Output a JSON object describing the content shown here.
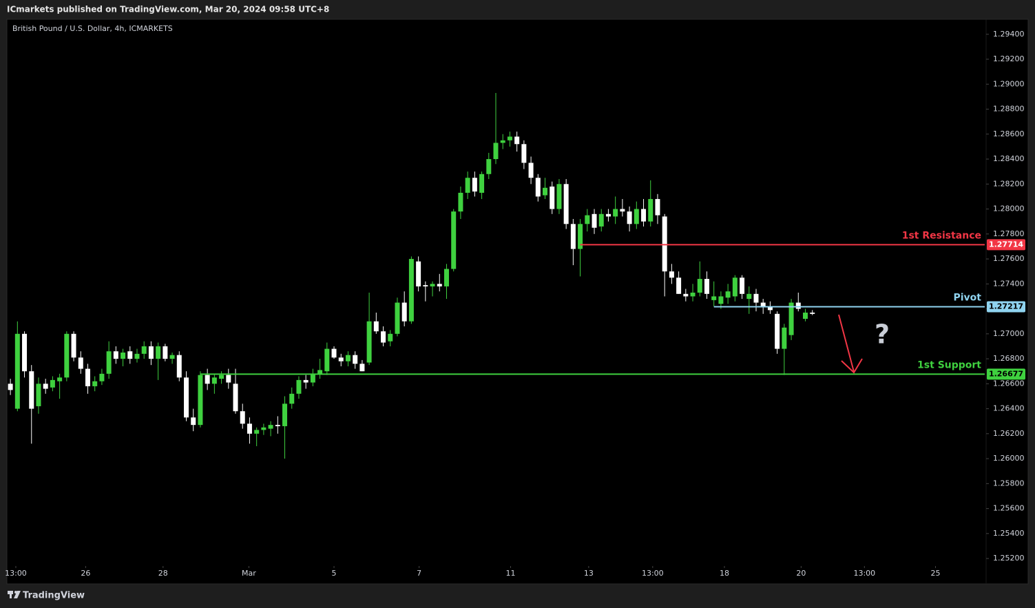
{
  "header": "ICmarkets published on TradingView.com, Mar 20, 2024 09:58 UTC+8",
  "footer": "TradingView",
  "chart_data": {
    "type": "candlestick",
    "title": "British Pound / U.S. Dollar, 4h, ICMARKETS",
    "up_color": "#3fd13f",
    "down_color": "#ffffff",
    "grid": false,
    "xlim": [
      -0.5,
      138.5
    ],
    "ylim": [
      1.2514,
      1.2952
    ],
    "xticks": [
      {
        "value": 0.77,
        "label": "13:00"
      },
      {
        "value": 10.7,
        "label": "26"
      },
      {
        "value": 21.7,
        "label": "28"
      },
      {
        "value": 33.9,
        "label": "Mar"
      },
      {
        "value": 46.0,
        "label": "5"
      },
      {
        "value": 58.1,
        "label": "7"
      },
      {
        "value": 71.1,
        "label": "11"
      },
      {
        "value": 82.2,
        "label": "13"
      },
      {
        "value": 91.3,
        "label": "13:00"
      },
      {
        "value": 101.5,
        "label": "18"
      },
      {
        "value": 112.4,
        "label": "20"
      },
      {
        "value": 121.4,
        "label": "13:00"
      },
      {
        "value": 131.5,
        "label": "25"
      }
    ],
    "yticks": [
      {
        "value": 1.252,
        "label": "1.25200"
      },
      {
        "value": 1.254,
        "label": "1.25400"
      },
      {
        "value": 1.256,
        "label": "1.25600"
      },
      {
        "value": 1.258,
        "label": "1.25800"
      },
      {
        "value": 1.26,
        "label": "1.26000"
      },
      {
        "value": 1.262,
        "label": "1.26200"
      },
      {
        "value": 1.264,
        "label": "1.26400"
      },
      {
        "value": 1.266,
        "label": "1.26600"
      },
      {
        "value": 1.268,
        "label": "1.26800"
      },
      {
        "value": 1.27,
        "label": "1.27000"
      },
      {
        "value": 1.272,
        "label": "1.27200"
      },
      {
        "value": 1.274,
        "label": "1.27400"
      },
      {
        "value": 1.276,
        "label": "1.27600"
      },
      {
        "value": 1.278,
        "label": "1.27800"
      },
      {
        "value": 1.28,
        "label": "1.28000"
      },
      {
        "value": 1.282,
        "label": "1.28200"
      },
      {
        "value": 1.284,
        "label": "1.28400"
      },
      {
        "value": 1.286,
        "label": "1.28600"
      },
      {
        "value": 1.288,
        "label": "1.28800"
      },
      {
        "value": 1.29,
        "label": "1.29000"
      },
      {
        "value": 1.292,
        "label": "1.29200"
      },
      {
        "value": 1.294,
        "label": "1.29400"
      }
    ],
    "open": [
      1.266,
      1.264,
      1.27,
      1.267,
      1.2642,
      1.266,
      1.2657,
      1.2662,
      1.2665,
      1.27,
      1.2681,
      1.2672,
      1.2658,
      1.2662,
      1.2668,
      1.2686,
      1.268,
      1.2686,
      1.268,
      1.2684,
      1.269,
      1.268,
      1.269,
      1.268,
      1.2683,
      1.2665,
      1.2633,
      1.2627,
      1.2667,
      1.266,
      1.2664,
      1.2667,
      1.266,
      1.2638,
      1.2628,
      1.262,
      1.2623,
      1.2624,
      1.2627,
      1.2626,
      1.2644,
      1.2652,
      1.2663,
      1.2661,
      1.2668,
      1.267,
      1.2688,
      1.2681,
      1.2678,
      1.2683,
      1.2676,
      1.2677,
      1.271,
      1.2702,
      1.2694,
      1.27,
      1.2725,
      1.271,
      1.2758,
      1.2739,
      1.2738,
      1.274,
      1.2738,
      1.2752,
      1.2798,
      1.2813,
      1.2825,
      1.2813,
      1.2828,
      1.284,
      1.2853,
      1.2855,
      1.2858,
      1.2852,
      1.2837,
      1.2825,
      1.2811,
      1.2818,
      1.28,
      1.282,
      1.2788,
      1.2768,
      1.2788,
      1.2796,
      1.2786,
      1.2796,
      1.2794,
      1.28,
      1.2798,
      1.2788,
      1.28,
      1.279,
      1.2808,
      1.2794,
      1.275,
      1.2745,
      1.2732,
      1.273,
      1.2733,
      1.2744,
      1.2727,
      1.2724,
      1.2729,
      1.273,
      1.2745,
      1.2728,
      1.2732,
      1.2725,
      1.2722,
      1.2716,
      1.2688,
      1.2699,
      1.2725,
      1.2712,
      1.2717
    ],
    "high": [
      1.2664,
      1.271,
      1.2702,
      1.2675,
      1.2665,
      1.2664,
      1.2666,
      1.2668,
      1.2702,
      1.2702,
      1.2686,
      1.2676,
      1.2666,
      1.2672,
      1.2694,
      1.269,
      1.2688,
      1.269,
      1.2688,
      1.2694,
      1.2694,
      1.2693,
      1.2692,
      1.2685,
      1.2686,
      1.267,
      1.264,
      1.267,
      1.2672,
      1.2668,
      1.267,
      1.2672,
      1.2672,
      1.2644,
      1.2633,
      1.2625,
      1.2628,
      1.263,
      1.2634,
      1.265,
      1.2657,
      1.2666,
      1.2667,
      1.2672,
      1.268,
      1.2693,
      1.269,
      1.2684,
      1.2686,
      1.2686,
      1.2679,
      1.2733,
      1.2717,
      1.2706,
      1.2703,
      1.2729,
      1.2734,
      1.2762,
      1.2762,
      1.2742,
      1.2742,
      1.2748,
      1.2756,
      1.28,
      1.2818,
      1.283,
      1.283,
      1.283,
      1.2845,
      1.2893,
      1.286,
      1.2862,
      1.2862,
      1.2855,
      1.2842,
      1.2828,
      1.2825,
      1.2822,
      1.2824,
      1.2824,
      1.2792,
      1.2792,
      1.28,
      1.28,
      1.28,
      1.28,
      1.281,
      1.2808,
      1.2802,
      1.2806,
      1.2808,
      1.2823,
      1.2812,
      1.2796,
      1.2756,
      1.275,
      1.2736,
      1.274,
      1.2758,
      1.275,
      1.2742,
      1.2734,
      1.274,
      1.2747,
      1.2747,
      1.2738,
      1.2736,
      1.2728,
      1.2726,
      1.2718,
      1.2708,
      1.2728,
      1.2733,
      1.272,
      1.2719
    ],
    "low": [
      1.2651,
      1.2638,
      1.2665,
      1.2612,
      1.2636,
      1.2652,
      1.2654,
      1.2648,
      1.2662,
      1.2678,
      1.2668,
      1.2652,
      1.2654,
      1.2659,
      1.2664,
      1.2676,
      1.2674,
      1.2676,
      1.2677,
      1.268,
      1.2675,
      1.2663,
      1.2678,
      1.2676,
      1.2662,
      1.263,
      1.2622,
      1.2625,
      1.2655,
      1.2652,
      1.266,
      1.2656,
      1.2636,
      1.2624,
      1.2612,
      1.261,
      1.2619,
      1.2618,
      1.262,
      1.26,
      1.264,
      1.2648,
      1.2656,
      1.2658,
      1.2664,
      1.2667,
      1.268,
      1.2674,
      1.2674,
      1.2672,
      1.267,
      1.2675,
      1.27,
      1.269,
      1.269,
      1.2698,
      1.2706,
      1.2708,
      1.2734,
      1.2726,
      1.273,
      1.2734,
      1.2728,
      1.275,
      1.2792,
      1.2808,
      1.281,
      1.2808,
      1.2824,
      1.2836,
      1.2848,
      1.285,
      1.2846,
      1.2832,
      1.282,
      1.2806,
      1.2808,
      1.2796,
      1.2796,
      1.2784,
      1.2755,
      1.2746,
      1.2782,
      1.278,
      1.2782,
      1.279,
      1.2788,
      1.2794,
      1.2782,
      1.2784,
      1.2786,
      1.2786,
      1.2788,
      1.273,
      1.274,
      1.2732,
      1.2726,
      1.2726,
      1.273,
      1.2728,
      1.2722,
      1.272,
      1.2724,
      1.2726,
      1.2728,
      1.2716,
      1.2718,
      1.2716,
      1.2716,
      1.2684,
      1.2667,
      1.2695,
      1.2718,
      1.271,
      1.2715
    ],
    "close": [
      1.2655,
      1.27,
      1.267,
      1.264,
      1.266,
      1.2656,
      1.2663,
      1.2665,
      1.27,
      1.2681,
      1.2672,
      1.2658,
      1.2662,
      1.2668,
      1.2686,
      1.268,
      1.2685,
      1.268,
      1.2684,
      1.269,
      1.268,
      1.269,
      1.268,
      1.2683,
      1.2665,
      1.2633,
      1.2627,
      1.2667,
      1.266,
      1.2665,
      1.2667,
      1.2661,
      1.2638,
      1.2628,
      1.262,
      1.2623,
      1.2625,
      1.2627,
      1.2626,
      1.2644,
      1.2652,
      1.2663,
      1.2661,
      1.2668,
      1.2671,
      1.2688,
      1.2681,
      1.2678,
      1.2683,
      1.2676,
      1.267,
      1.271,
      1.2702,
      1.2693,
      1.27,
      1.2725,
      1.271,
      1.276,
      1.2738,
      1.2738,
      1.274,
      1.2738,
      1.2752,
      1.2798,
      1.2813,
      1.2825,
      1.2814,
      1.2828,
      1.284,
      1.2853,
      1.2855,
      1.2858,
      1.2852,
      1.2837,
      1.2825,
      1.281,
      1.2817,
      1.28,
      1.282,
      1.2788,
      1.2768,
      1.2788,
      1.2795,
      1.2785,
      1.2796,
      1.2794,
      1.28,
      1.2798,
      1.2788,
      1.28,
      1.279,
      1.2808,
      1.2795,
      1.275,
      1.2745,
      1.2732,
      1.273,
      1.2733,
      1.2744,
      1.2732,
      1.273,
      1.273,
      1.2734,
      1.2745,
      1.2732,
      1.2732,
      1.2725,
      1.2722,
      1.2719,
      1.2688,
      1.2705,
      1.2725,
      1.272,
      1.2717,
      1.2716
    ],
    "levels": [
      {
        "name": "1st Resistance",
        "value": 1.27714,
        "color": "#f23645",
        "from": 81
      },
      {
        "name": "Pivot",
        "value": 1.27217,
        "color": "#8fd3ef",
        "from": 100
      },
      {
        "name": "1st Support",
        "value": 1.26677,
        "color": "#3fd13f",
        "from": 27
      }
    ],
    "annotation": "?"
  }
}
